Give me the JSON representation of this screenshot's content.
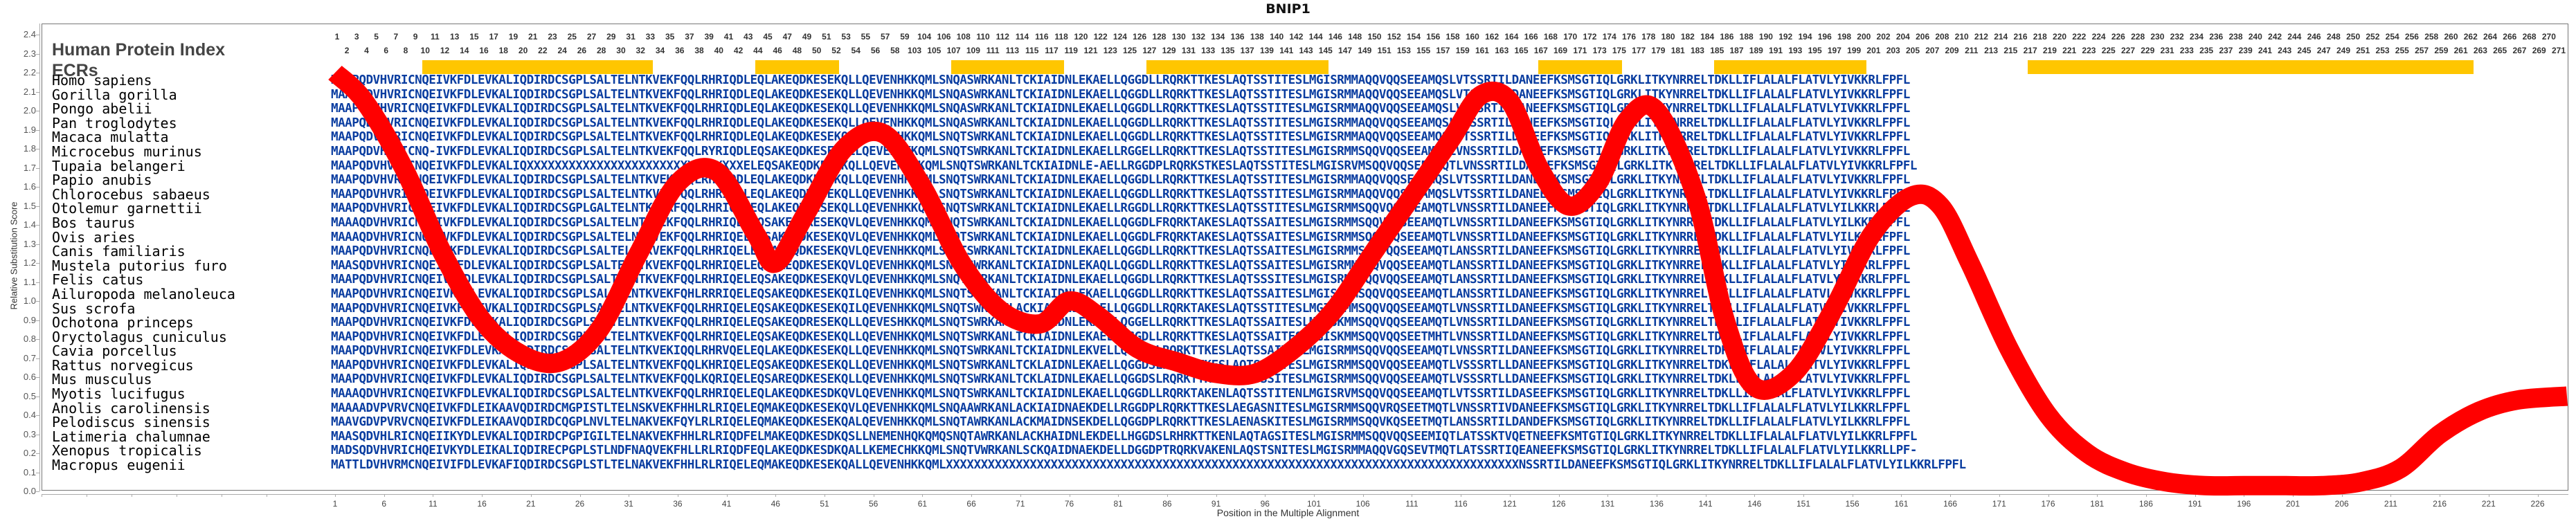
{
  "title": "BNIP1",
  "labels": {
    "human_protein_index": "Human Protein Index",
    "ecrs": "ECRs"
  },
  "colors": {
    "curve": "#ff0000",
    "ecr_bar": "#ffc600",
    "residue_conserved": "#0a3da0",
    "residue_variable": "#4a7ba7",
    "residue_highly_variable": "#7fae98"
  },
  "species": [
    "Homo sapiens",
    "Gorilla gorilla",
    "Pongo abelii",
    "Pan troglodytes",
    "Macaca mulatta",
    "Microcebus murinus",
    "Tupaia belangeri",
    "Papio anubis",
    "Chlorocebus sabaeus",
    "Otolemur garnettii",
    "Bos taurus",
    "Ovis aries",
    "Canis familiaris",
    "Mustela putorius furo",
    "Felis catus",
    "Ailuropoda melanoleuca",
    "Sus scrofa",
    "Ochotona princeps",
    "Oryctolagus cuniculus",
    "Cavia porcellus",
    "Rattus norvegicus",
    "Mus musculus",
    "Myotis lucifugus",
    "Anolis carolinensis",
    "Pelodiscus sinensis",
    "Latimeria chalumnae",
    "Xenopus tropicalis",
    "Macropus eugenii"
  ],
  "sequences": [
    "MAAPQDVHVRICNQEIVKFDLEVKALIQDIRDCSGPLSALTELNTKVEKFQQLRHRIQDLEQLAKEQDKESEKQLLQEVENHKKQMLSNQASWRKANLTCKIAIDNLEKAELLQGGDLLRQRKTTKESLAQTSSTITESLMGISRMMAQQVQQSEEAMQSLVTSSRTILDANEEFKSMSGTIQLGRKLITKYNRRELTDKLLIFLALALFLATVLYIVKKRLFPFL",
    "MAAPQDVHVRICNQEIVKFDLEVKALIQDIRDCSGPLSALTELNTKVEKFQQLRHRIQDLEQLAKEQDKESEKQLLQEVENHKKQMLSNQASWRKANLTCKIAIDNLEKAELLQGGDLLRQRKTTKESLAQTSSTITESLMGISRMMAQQVQQSEEAMQSLVTSSRTILDANEEFKSMSGTIQLGRKLITKYNRRELTDKLLIFLALALFLATVLYIVKKRLFPFL",
    "MAAPQDVHVRICNQEIVKFDLEVKALIQDIRDCSGPLSALTELNTKVEKFQQLRHRIQDLEQLAKEQDKESEKQLLQEVENHKKQMLSNQASWRKANLTCKIAIDNLEKAELLQGGDLLRQRKTTKESLAQTSSTITESLMGISRMMAQQVQQSEEAMQSLVTSSRTILDANEEFKSMSGTIQLGRKLITKYNRRELTDKLLIFLALALFLATVLYIVKKRLFPFL",
    "MAAPQDVHVRICNQEIVKFDLEVKALIQDIRDCSGPLSALTELNTKVEKFQQLRHRIQDLEQLAKEQDKESEKQLLQEVENHKKQMLSNQASWRKANLTCKIAIDNLEKAELLQGGDLLRQRKTTKESLAQTSSTITESLMGISRMMAQQVQQSEEAMQSLVTSSRTILDANEEFKSMSGTIQLGRKLITKYNRRELTDKLLIFLALALFLATVLYIVKKRLFPFL",
    "MAAPQDVHVRICNQEIVKFDLEVKALIQDIRDCSGPLSALTELNTKVEKFQQLRHRIQDLEQLAKEQDKESEKQLLQEVENHKKQMLSNQTSWRKANLTCKIAIDNLEKAELLQGGDLLRQRKTTKESLAQTSSTITESLMGISRMMAQQVQQSEEAMQSLVTSSRTILDANEEFKSMSGTIQLGRKLITKYNRRELTDKLLIFLALALFLATVLYIVKKRLFPFL",
    "MAAPQDVHVRICNQ-IVKFDLEVKALIQDIRDCSGPLSALTELNTKVEKFQQLRYRIQDLEQSAKEQDKESEKQLLQEVENHKKQMLSNQTSWRKANLTCKIAIDNLEKAELLRGGELLRQRKTTKESLAQTSSTITESLMGISRMMSQQVQQSEEAMQTLVNSSRTILDANEEFKSMSGTIQLGRKLITKYNRRELTDKLLIFLALALFLATVLYIVKKRLFPFL",
    "MAAPQDVHVRICNQEIVKFDLEVKALIQXXXXXXXXXXXXXXXXXXXXXXXXXXXXXXXELEQSAKEQDKESEKQLLQEVENHKKQMLSNQTSWRKANLTCKIAIDNLE-AELLRGGDPLRQRKSTKESLAQTSSTITESLMGISRVMSQQVQQSEEAMQTLVNSSRTILDANEEFKSMSGTIQLGRKLITKYNRRELTDKLLIFLALALFLATVLYIVKKRLFPFL",
    "MAAPQDVHVRICNQEIVKFDLEVKALIQDIRDCSGPLSALTELNTKVEKFQQLRHRIQDLEQLAKEQDKESEKQLLQEVENHKKQMLSNQTSWRKANLTCKIAIDNLEKAELLQGGDLLRQRKTTKESLAQTSSTITESLMGISRMMAQQVQQSEEAMQSLVTSSRTILDANEEFKSMSGTIQLGRKLITKYNRRELTDKLLIFLALALFLATVLYIVKKRLFPFL",
    "MAAPQDVHVRICNQEIVKFDLEVKALIQDIRDCSGPLSALTELNTKVEKFQQLRHRIQDLEQLAKEQDKESEKQLLQEVENHKKQMLSNQTSWRKANLTCKIAIDNLEKAELLQGGDLLRQRKTTKESLAQTSSTITESLMGISRMMAQQVQQSEEAMQSLVTSSRTILDANEEFKSMSGTIQLGRKLITKYNRRELTDKLLIFLALALFLATVLYIVKKRLFPFL",
    "MAAPQDVHVRICNQEIVKFDLEVKALIQDIRDCSGPLGALTELNTKVEKFQQLRHRIQELEQLAKEQDKESEKQLLQEVENHKKQMLSNQTSWRKANLTCKIAIDNLEKAELLRGGDLLRQRKTTKESLAQTSSTITESLMGISRMMSQQVQQSEEAMQTLVNSSRTILDANEEFKSMSGTIQLGRKLITKYNRRELTDKLLIFLALALFLATVLYILKKRLFPFL",
    "MAAAQDVHVRICNQEIVKFDLEVKALIQDIRDCSGPLSALTELNTKVEKFQQLRHRIQELEQSAKEQDKESEKQVLQEVENHKKQMLSNQTSWRKANLTCKIAIDNLEKAELLQGGDLFRQRKTAKESLAQTSSAITESLMGISRMMSQQVQQSEEAMQTLVNSSRTILDANEEFKSMSGTIQLGRKLITKYNRRELTDKLLIFLALALFLATVLYILKKRLFPFL",
    "MAAAQDVHVRICNQEIVKFDLEVKALIQDIRDCSGPLSALTELNTKVEKFQQLRHRIQELEQSAKEQDKESEKQVLQEVENHKKQMLSNQTSWRKANLTCKIAIDNLEKAELLQGGDLFRQRKTAKESLAQTSSAITESLMGISRMMSQQVQQSEEAMQTLVNSSRTILDANEEFKSMSGTIQLGRKLITKYNRRELTDKLLIFLALALFLATVLYILKKRLFPFL",
    "MAAPQDVHVRICNQEIVKFDLEVKALIQDIRDCSGPLSALTELNTKVEKFQQLRHRIQELEQSAKEQDKESEKQVLQEVENHKKQMLSNQTSWRKANLTCKIAIDNLEKAELLQGGDLLRQRKTTKESLAQTSSAITESLMGISRMMSQQVQQSEEAMQTLANSSRTILDANEEFKSMSGTIQLGRKLITKYNRRELTDKLLIFLALALFLATVLYIVKKRLFPFL",
    "MAASQDVHVRICNQEIVKFDLEVKALIQDIRDCSGPLSALTELNTKVEKFQQLRHRIQELEQSAKEQDKESEKQVLQEVENHKKQMLSNQTSWRKANLTCKIAIDNLEKAQLLQGGDLLRQRKTTKESLAQTSSAITESLMGISRMMSQQVQQSEEAMQTLANSSRTILDANEEFKSMSGTIQLGRKLITKYNRRELTDKLLIFLALALFLATVLYIVKKRLFPFL",
    "MAAPQDVHVRICNQEIVKFDLEVKALIQDIRDCSGPLSALTELNTKVEKFQQLRHRIQELEQSAKEQDKESEKQVLQEVENHKKQMLSNQTSWRKANLTCKIAIDNLEKAELLQGGDLLRQRKTTKESLAQTSSSITESLMGISRMMSQQVQQSEEAMQTLANSSRTILDANEEFKSMSGTIQLGRKLITKYNRRELTDKLLIFLALALFLATVLYIIKKRLFPFL",
    "MAAPQDVHVRICNQEIVKFDLEVKALIQDIRDCSGPLSALTELNTKVEKFQHLRRRIQELEQSAKEQDKESEKQILQEVENHKKQMLSNQTSWRKANLTCKIAIDNLEKAELLQGGDLLRQRKTTKESLAQTSSAITESLMGISRMMSQQVQQSEEAMQTLANSSRTILDANEEFKSMSGTIQLGRKLITKYNRRELTDKLLIFLALALFLATVLYIVKKRLFPFL",
    "MAAPQDVHVRICNQEIVKFDLEVKALIQDIRDCSGPLSALTELNTKVEKFQQLRHRIQELEQSAKEQDKESEKQILQEVENHKKQMLSNQTSWRKANLACKIAIDNLEKAELLQGGDLLRQRKTAKESLAQTSSTITESLMGISRMMSQQVQQSEEAMQTLVNSSRTILDANEEFKSMSGTIQLGRKLITKYNRRELTDKLLIFLALALFLATVLYIVKKRLFPFL",
    "MAAPQDVHVRICNQEIVKFDLEVKALIQDIRDCSGPLSALTELNTKVEKFQQLRHRIQELEQSAKEQDRESEKQLLQEVESHKKQMLSNQTSWRKANLTCKMAIDNLEKAQLLQGGELLRQRKTTKESLAQTSSAITESLMGISKMMSQQVQQSEEAMQTLVNSSRTILDANEEFKSMSGTIQLGRKLITKYNRRELTDKLLIFLALALFLATVLYIVKKRLFPFL",
    "MAAPQDVHVRICNQEIVKFDLEVKALIQDIRDCSGPLSALTELNTKVEKFQQLRHRIQELEQSAKEQDKESEKQLLQEVENHKKQMLSNQTSWRKANLTCKIAIDNLEKAELLQGGDLLRQRKTTKESLAQTSSAITESLMGISKMMSQQVQQSEETMHTLVNSSRTILDANEEFKSMSGTIQLGRKLITKYNRRELTDKLLIFLALALFLATVLYIVKKRLFPFL",
    "MAAPQDVHVRICNQEIVKFDLEVKALIQDIRDCSGPLSALTELNTKVEKIQQLRHRVQELEQLAKEQDKESEKQLLQEVENHKKQMLSNQTSWRKANLTCKIAIDNLEKVELLQGGDPLRQRKTTKESLAQTSSAITESLMGISRMMSQQVQQSEEAMQTLVNSSRTILDANEEFKSMSGTIQLGRKLITKYNRRELTDKLLIFLALALFLATVLYIVKKRLFPFL",
    "MAAPQDVHVRICNQEIVKFDLEVKALIQDIRDCSGPLSALTELNTKVEKFQQLKHRIQELEQSAKEQDKESEKQLLQEVENHKKQMLSNQTSWRKANLTCKLAIDNLEKAELLQGGDSLRQRKTTKESLAQTSSTITESLMGISRMMSQQVQQSEEAMQTLVSSSRTLLDANEEFKSMSGTIQLGRKLITKYNRRELTDKLLIFLALALFLATVLYIVKKRLFPFL",
    "MAAPQDVHVRICNQEIVKFDLEVKALIQDIRDCSGPLSALTELNTKVEKFQQLKQRIQELEQSAREQDKESEKQLLQEVENHKKQMLSNQTSWRKANLTCKLAIDNLEKAELLQGGDSLRQRKTTKESLAQTSSSITESLMGISRMMSQQVQQSEEAMQTLVSSSRTLLDANEEFKSMSGTIQLGRKLITKYNRRELTDKLLIFLALALFLATVLYIVKKRLFPFL",
    "MAAAQDVHVRICNQEIVKFDLEVKALIQDIRDCSGPLSALTELNTKVEKFQQLRHRIQELEQLAKEQDKESDKQVLQEVENHKKQMLSNQTSWRKANLTCKIAIDNLEKAELLQGGDLLRQRKTAKENLAQTSSTITENLMGISRVMSQQVQQSEEAMQTLVTSSRTILDASEEFKSMSGTIQLGRKLITKYNRRELTDKLLIFLALALFLATVLYIVKKRLFPFL",
    "MAAAADVPVRVCNQEIVKFDLEIKAAVQDIRDCMGPISTLTELNSKVEKFHHLRLRIQELEQMAKEQDKESEKQVLQEVENHKKQMLSNQAAWRKANLACKIAIDNAEKDELLRGGDPLRQRKTTKESLAEGASNITESLMGISRMMSQQVRQSEETMQTLVNSSRTIVDANEEFKSMSGTIQLGRKLITKYNRRELTDKLLIFLALALFLATVLYILKKRLFPFL",
    "MAAVGDVPVRVCNQEIVKFDLEIKAAVQDIRDCQGPLNVLTELNAKVEKFQYLRLRIQELEQMAKEQDKESEKQALQEVENHKKQMLSNQTAWRKANLACKMAIDNSEKDELLQGGDPLRQRKTTKESLAENASKITESLMGISRMMSQQVKQSEETMQTLANSSRTILDANDEFKSMSGTIQLGRKLITKYNRRELTDKLLIFLALALFLATVLYILKKRLFPFL",
    "MAASQDVHLRICNQEIIKYDLEVKALIQDIRDCPGPIGILTELNAKVEKFHHLRLRIQDFELMAKEQDKESDKQSLLNEMENHQKQMQSNQTAWRKANLACKHAIDNLEKDELLHGGDSLRHRKTTKENLAQTAGSITESLMGISRMMSQQVQQSEEMIQTLATSSKTVQETNEEFKSMTGTIQLGRKLITKYNRRELTDKLLIFLALALFLATVLYILKKRLFPFL",
    "MADSQDVHVRICHQEIVKYDLEIKALIQDIRECPGPLSTLNDFNAQVEKFHLLRLRIQDFEQLAKEQDKESDKQALLKEMECHKKQMLSNQTVWRKANLSCKQAIDNAEKDELLDGGDPTRQRKVAKENLAQSTSNITESLMGISRMMAQQVGQSEVTMQTLATSSRTIQEANEEFKSMSGTIQLGRKLITKYNRRELTDKLLIFLALALFLATVLYILKKRLLPF-",
    "MATTLDVHVRMCNQEIVIFDLEVKAFIQDIRDCSGPLSTLTELNAKVEKFHHLRLRIQELEQMAKEQDKESEKQALLQEVENHKKQMLXXXXXXXXXXXXXXXXXXXXXXXXXXXXXXXXXXXXXXXXXXXXXXXXXXXXXXXXXXXXXXXXXXXXXXXXXXXXXXXXXXNSSRTILDANEEFKSMSGTIQLGRKLITKYNRRELTDKLLIFLALALFLATVLYILKKRLFPFL"
  ],
  "chart_data": {
    "type": "line",
    "title": "BNIP1",
    "xlabel": "Position in the Multiple Alignment",
    "ylabel": "Relative Substitution Score",
    "ylim": [
      0.0,
      2.4
    ],
    "xlim": [
      1,
      229
    ],
    "yticks": [
      0.0,
      0.1,
      0.2,
      0.3,
      0.4,
      0.5,
      0.6,
      0.7,
      0.8,
      0.9,
      1.0,
      1.1,
      1.2,
      1.3,
      1.4,
      1.5,
      1.6,
      1.7,
      1.8,
      1.9,
      2.0,
      2.1,
      2.2,
      2.3,
      2.4
    ],
    "xticks": [
      1,
      6,
      11,
      16,
      21,
      26,
      31,
      36,
      41,
      46,
      51,
      56,
      61,
      66,
      71,
      76,
      81,
      86,
      91,
      96,
      101,
      106,
      111,
      116,
      121,
      126,
      131,
      136,
      141,
      146,
      151,
      156,
      161,
      166,
      171,
      176,
      181,
      186,
      191,
      196,
      201,
      206,
      211,
      216,
      221,
      226
    ],
    "grid": false,
    "series": [
      {
        "name": "Relative Substitution Score",
        "color": "#ff0000",
        "x": [
          1,
          4,
          8,
          12,
          16,
          20,
          24,
          28,
          32,
          36,
          40,
          44,
          46,
          49,
          53,
          57,
          61,
          65,
          69,
          73,
          76,
          79,
          83,
          87,
          91,
          95,
          99,
          103,
          107,
          111,
          115,
          118,
          121,
          124,
          127,
          130,
          133,
          136,
          140,
          143,
          146,
          150,
          154,
          158,
          162,
          165,
          168,
          172,
          176,
          180,
          184,
          188,
          192,
          196,
          200,
          204,
          208,
          212,
          216,
          220,
          224,
          229
        ],
        "values": [
          2.2,
          2.05,
          1.7,
          1.25,
          0.9,
          0.72,
          0.68,
          0.85,
          1.25,
          1.62,
          1.68,
          1.35,
          1.2,
          1.45,
          1.8,
          1.88,
          1.6,
          1.2,
          0.95,
          0.88,
          1.0,
          0.92,
          0.75,
          0.68,
          0.62,
          0.62,
          0.75,
          0.95,
          1.25,
          1.55,
          1.85,
          2.08,
          2.05,
          1.7,
          1.5,
          1.62,
          1.95,
          2.0,
          1.55,
          0.9,
          0.55,
          0.62,
          0.95,
          1.35,
          1.55,
          1.5,
          1.2,
          0.75,
          0.4,
          0.2,
          0.1,
          0.05,
          0.03,
          0.03,
          0.03,
          0.03,
          0.05,
          0.12,
          0.3,
          0.42,
          0.48,
          0.5
        ]
      }
    ],
    "ecr_regions_human_index": [
      [
        10,
        33
      ],
      [
        44,
        52
      ],
      [
        107,
        118
      ],
      [
        127,
        145
      ],
      [
        167,
        175
      ],
      [
        185,
        200
      ],
      [
        217,
        262
      ]
    ],
    "human_protein_index": {
      "odd_row": [
        1,
        3,
        5,
        7,
        9,
        11,
        13,
        15,
        17,
        19,
        21,
        23,
        25,
        27,
        29,
        31,
        33,
        35,
        37,
        39,
        41,
        43,
        45,
        47,
        49,
        51,
        53,
        55,
        57,
        59,
        104,
        106,
        108,
        110,
        112,
        114,
        116,
        118,
        120,
        122,
        124,
        126,
        128,
        130,
        132,
        134,
        136,
        138,
        140,
        142,
        144,
        146,
        148,
        150,
        152,
        154,
        156,
        158,
        160,
        162,
        164,
        166,
        168,
        170,
        172,
        174,
        176,
        178,
        180,
        182,
        184,
        186,
        188,
        190,
        192,
        194,
        196,
        198,
        200,
        202,
        204,
        206,
        208,
        210,
        212,
        214,
        216,
        218,
        220,
        222,
        224,
        226,
        228,
        230,
        232,
        234,
        236,
        238,
        240,
        242,
        244,
        246,
        248,
        250,
        252,
        254,
        256,
        258,
        260,
        262,
        264,
        266,
        268,
        270
      ],
      "even_row": [
        2,
        4,
        6,
        8,
        10,
        12,
        14,
        16,
        18,
        20,
        22,
        24,
        26,
        28,
        30,
        32,
        34,
        36,
        38,
        40,
        42,
        44,
        46,
        48,
        50,
        52,
        54,
        56,
        58,
        103,
        105,
        107,
        109,
        111,
        113,
        115,
        117,
        119,
        121,
        123,
        125,
        127,
        129,
        131,
        133,
        135,
        137,
        139,
        141,
        143,
        145,
        147,
        149,
        151,
        153,
        155,
        157,
        159,
        161,
        163,
        165,
        167,
        169,
        171,
        173,
        175,
        177,
        179,
        181,
        183,
        185,
        187,
        189,
        191,
        193,
        195,
        197,
        199,
        201,
        203,
        205,
        207,
        209,
        211,
        213,
        215,
        217,
        219,
        221,
        223,
        225,
        227,
        229,
        231,
        233,
        235,
        237,
        239,
        241,
        243,
        245,
        247,
        249,
        251,
        253,
        255,
        257,
        259,
        261,
        263,
        265,
        267,
        269,
        271
      ]
    }
  }
}
